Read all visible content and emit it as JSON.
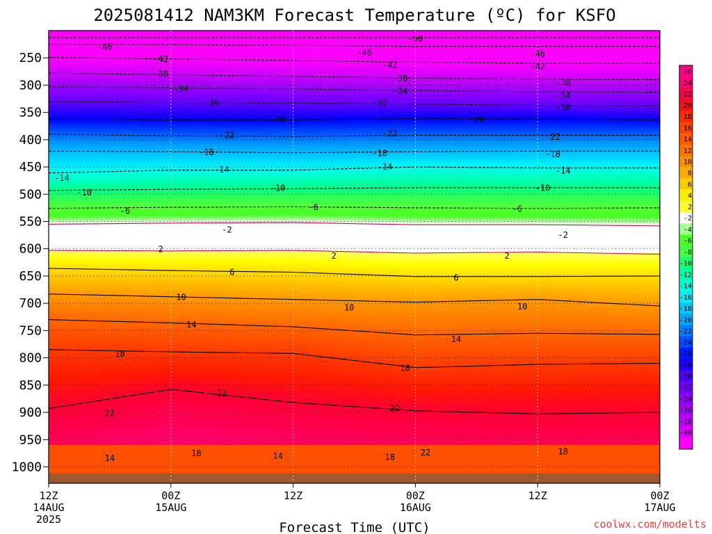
{
  "chart_data": {
    "type": "heatmap",
    "title": "2025081412 NAM3KM Forecast Temperature (ºC) for KSFO",
    "xlabel": "Forecast Time (UTC)",
    "ylabel": "",
    "y_ticks": [
      250,
      300,
      350,
      400,
      450,
      500,
      550,
      600,
      650,
      700,
      750,
      800,
      850,
      900,
      950,
      1000
    ],
    "ylim": [
      1030,
      200
    ],
    "x_ticks": [
      {
        "hour": 0,
        "l1": "12Z",
        "l2": "14AUG",
        "l3": "2025"
      },
      {
        "hour": 12,
        "l1": "00Z",
        "l2": "15AUG",
        "l3": ""
      },
      {
        "hour": 24,
        "l1": "12Z",
        "l2": "",
        "l3": ""
      },
      {
        "hour": 36,
        "l1": "00Z",
        "l2": "16AUG",
        "l3": ""
      },
      {
        "hour": 48,
        "l1": "12Z",
        "l2": "",
        "l3": ""
      },
      {
        "hour": 60,
        "l1": "00Z",
        "l2": "17AUG",
        "l3": ""
      }
    ],
    "xlim": [
      0,
      60
    ],
    "colorbar_ticks": [
      26,
      24,
      22,
      20,
      18,
      16,
      14,
      12,
      10,
      8,
      6,
      4,
      2,
      -2,
      -4,
      -6,
      -8,
      -10,
      -12,
      -14,
      -16,
      -18,
      -20,
      -22,
      -24,
      -26,
      -28,
      -30,
      -32,
      -34,
      -36,
      -38,
      -40
    ],
    "contours": [
      {
        "level": -50,
        "pressure": [
          213,
          213,
          213,
          213,
          213,
          213
        ]
      },
      {
        "level": -46,
        "pressure": [
          225,
          226,
          227,
          229,
          229,
          229
        ]
      },
      {
        "level": -42,
        "pressure": [
          249,
          252,
          255,
          258,
          260,
          260
        ]
      },
      {
        "level": -38,
        "pressure": [
          278,
          281,
          284,
          287,
          289,
          290
        ]
      },
      {
        "level": -34,
        "pressure": [
          303,
          305,
          307,
          310,
          312,
          313
        ]
      },
      {
        "level": -30,
        "pressure": [
          330,
          332,
          333,
          335,
          337,
          338
        ]
      },
      {
        "level": -26,
        "pressure": [
          362,
          364,
          364,
          361,
          362,
          364
        ]
      },
      {
        "level": -22,
        "pressure": [
          390,
          393,
          394,
          392,
          392,
          392
        ]
      },
      {
        "level": -18,
        "pressure": [
          421,
          422,
          424,
          422,
          421,
          421
        ]
      },
      {
        "level": -14,
        "pressure": [
          461,
          456,
          456,
          450,
          452,
          452
        ]
      },
      {
        "level": -10,
        "pressure": [
          493,
          491,
          490,
          488,
          488,
          488
        ]
      },
      {
        "level": -6,
        "pressure": [
          526,
          524,
          523,
          525,
          526,
          525
        ]
      },
      {
        "level": -2,
        "pressure": [
          555,
          553,
          552,
          556,
          556,
          558
        ]
      },
      {
        "level": 2,
        "pressure": [
          603,
          604,
          603,
          608,
          606,
          610
        ]
      },
      {
        "level": 6,
        "pressure": [
          636,
          640,
          643,
          651,
          651,
          650
        ]
      },
      {
        "level": 10,
        "pressure": [
          683,
          688,
          693,
          698,
          693,
          705
        ]
      },
      {
        "level": 14,
        "pressure": [
          730,
          736,
          743,
          758,
          755,
          757
        ]
      },
      {
        "level": 18,
        "pressure": [
          785,
          789,
          792,
          818,
          812,
          810
        ]
      },
      {
        "level": 22,
        "pressure": [
          893,
          858,
          882,
          897,
          903,
          900
        ]
      }
    ],
    "contour_labels": [
      {
        "text": "-50",
        "hour": 36,
        "pressure": 215
      },
      {
        "text": "-46",
        "hour": 5.5,
        "pressure": 230
      },
      {
        "text": "-46",
        "hour": 31,
        "pressure": 240
      },
      {
        "text": "-46",
        "hour": 48,
        "pressure": 243
      },
      {
        "text": "-42",
        "hour": 11,
        "pressure": 252
      },
      {
        "text": "-42",
        "hour": 33.5,
        "pressure": 263
      },
      {
        "text": "-42",
        "hour": 48,
        "pressure": 266
      },
      {
        "text": "-38",
        "hour": 11,
        "pressure": 280
      },
      {
        "text": "-38",
        "hour": 34.5,
        "pressure": 288
      },
      {
        "text": "-38",
        "hour": 50.5,
        "pressure": 295
      },
      {
        "text": "-34",
        "hour": 13,
        "pressure": 307
      },
      {
        "text": "-34",
        "hour": 34.5,
        "pressure": 311
      },
      {
        "text": "-34",
        "hour": 50.5,
        "pressure": 320
      },
      {
        "text": "-30",
        "hour": 16,
        "pressure": 332
      },
      {
        "text": "-30",
        "hour": 32.5,
        "pressure": 333
      },
      {
        "text": "-30",
        "hour": 50.5,
        "pressure": 341
      },
      {
        "text": "-26",
        "hour": 22.5,
        "pressure": 363
      },
      {
        "text": "-26",
        "hour": 42,
        "pressure": 363
      },
      {
        "text": "-22",
        "hour": 17.5,
        "pressure": 392
      },
      {
        "text": "-22",
        "hour": 33.5,
        "pressure": 389
      },
      {
        "text": "-22",
        "hour": 49.5,
        "pressure": 395
      },
      {
        "text": "-18",
        "hour": 15.5,
        "pressure": 423
      },
      {
        "text": "-18",
        "hour": 32.5,
        "pressure": 425
      },
      {
        "text": "-18",
        "hour": 49.5,
        "pressure": 427
      },
      {
        "text": "-14",
        "hour": 1.3,
        "pressure": 470
      },
      {
        "text": "-14",
        "hour": 17,
        "pressure": 455
      },
      {
        "text": "-14",
        "hour": 33,
        "pressure": 450
      },
      {
        "text": "-14",
        "hour": 50.5,
        "pressure": 457
      },
      {
        "text": "-10",
        "hour": 3.5,
        "pressure": 497
      },
      {
        "text": "-10",
        "hour": 22.5,
        "pressure": 489
      },
      {
        "text": "-10",
        "hour": 48.5,
        "pressure": 489
      },
      {
        "text": "-6",
        "hour": 7.5,
        "pressure": 531
      },
      {
        "text": "-6",
        "hour": 26,
        "pressure": 524
      },
      {
        "text": "-6",
        "hour": 46,
        "pressure": 527
      },
      {
        "text": "-2",
        "hour": 17.5,
        "pressure": 565
      },
      {
        "text": "-2",
        "hour": 50.5,
        "pressure": 575
      },
      {
        "text": "2",
        "hour": 11,
        "pressure": 601
      },
      {
        "text": "2",
        "hour": 28,
        "pressure": 613
      },
      {
        "text": "2",
        "hour": 45,
        "pressure": 613
      },
      {
        "text": "6",
        "hour": 18,
        "pressure": 643
      },
      {
        "text": "6",
        "hour": 40,
        "pressure": 653
      },
      {
        "text": "10",
        "hour": 13,
        "pressure": 689
      },
      {
        "text": "10",
        "hour": 29.5,
        "pressure": 708
      },
      {
        "text": "10",
        "hour": 46.5,
        "pressure": 706
      },
      {
        "text": "14",
        "hour": 14,
        "pressure": 739
      },
      {
        "text": "14",
        "hour": 40,
        "pressure": 766
      },
      {
        "text": "18",
        "hour": 7,
        "pressure": 793
      },
      {
        "text": "18",
        "hour": 35,
        "pressure": 819
      },
      {
        "text": "22",
        "hour": 17,
        "pressure": 865
      },
      {
        "text": "22",
        "hour": 6,
        "pressure": 902
      },
      {
        "text": "22",
        "hour": 34,
        "pressure": 893
      },
      {
        "text": "18",
        "hour": 14.5,
        "pressure": 975
      },
      {
        "text": "14",
        "hour": 6,
        "pressure": 984
      },
      {
        "text": "14",
        "hour": 22.5,
        "pressure": 980
      },
      {
        "text": "18",
        "hour": 33.5,
        "pressure": 982
      },
      {
        "text": "22",
        "hour": 37,
        "pressure": 974
      },
      {
        "text": "18",
        "hour": 50.5,
        "pressure": 972
      }
    ],
    "grid": true,
    "legend": "colorbar right"
  },
  "credit": "coolwx.com/modelts",
  "colors": {
    "credit": "#e8413c",
    "ground": "#a0582e",
    "freezing_line": "#cc0066"
  }
}
